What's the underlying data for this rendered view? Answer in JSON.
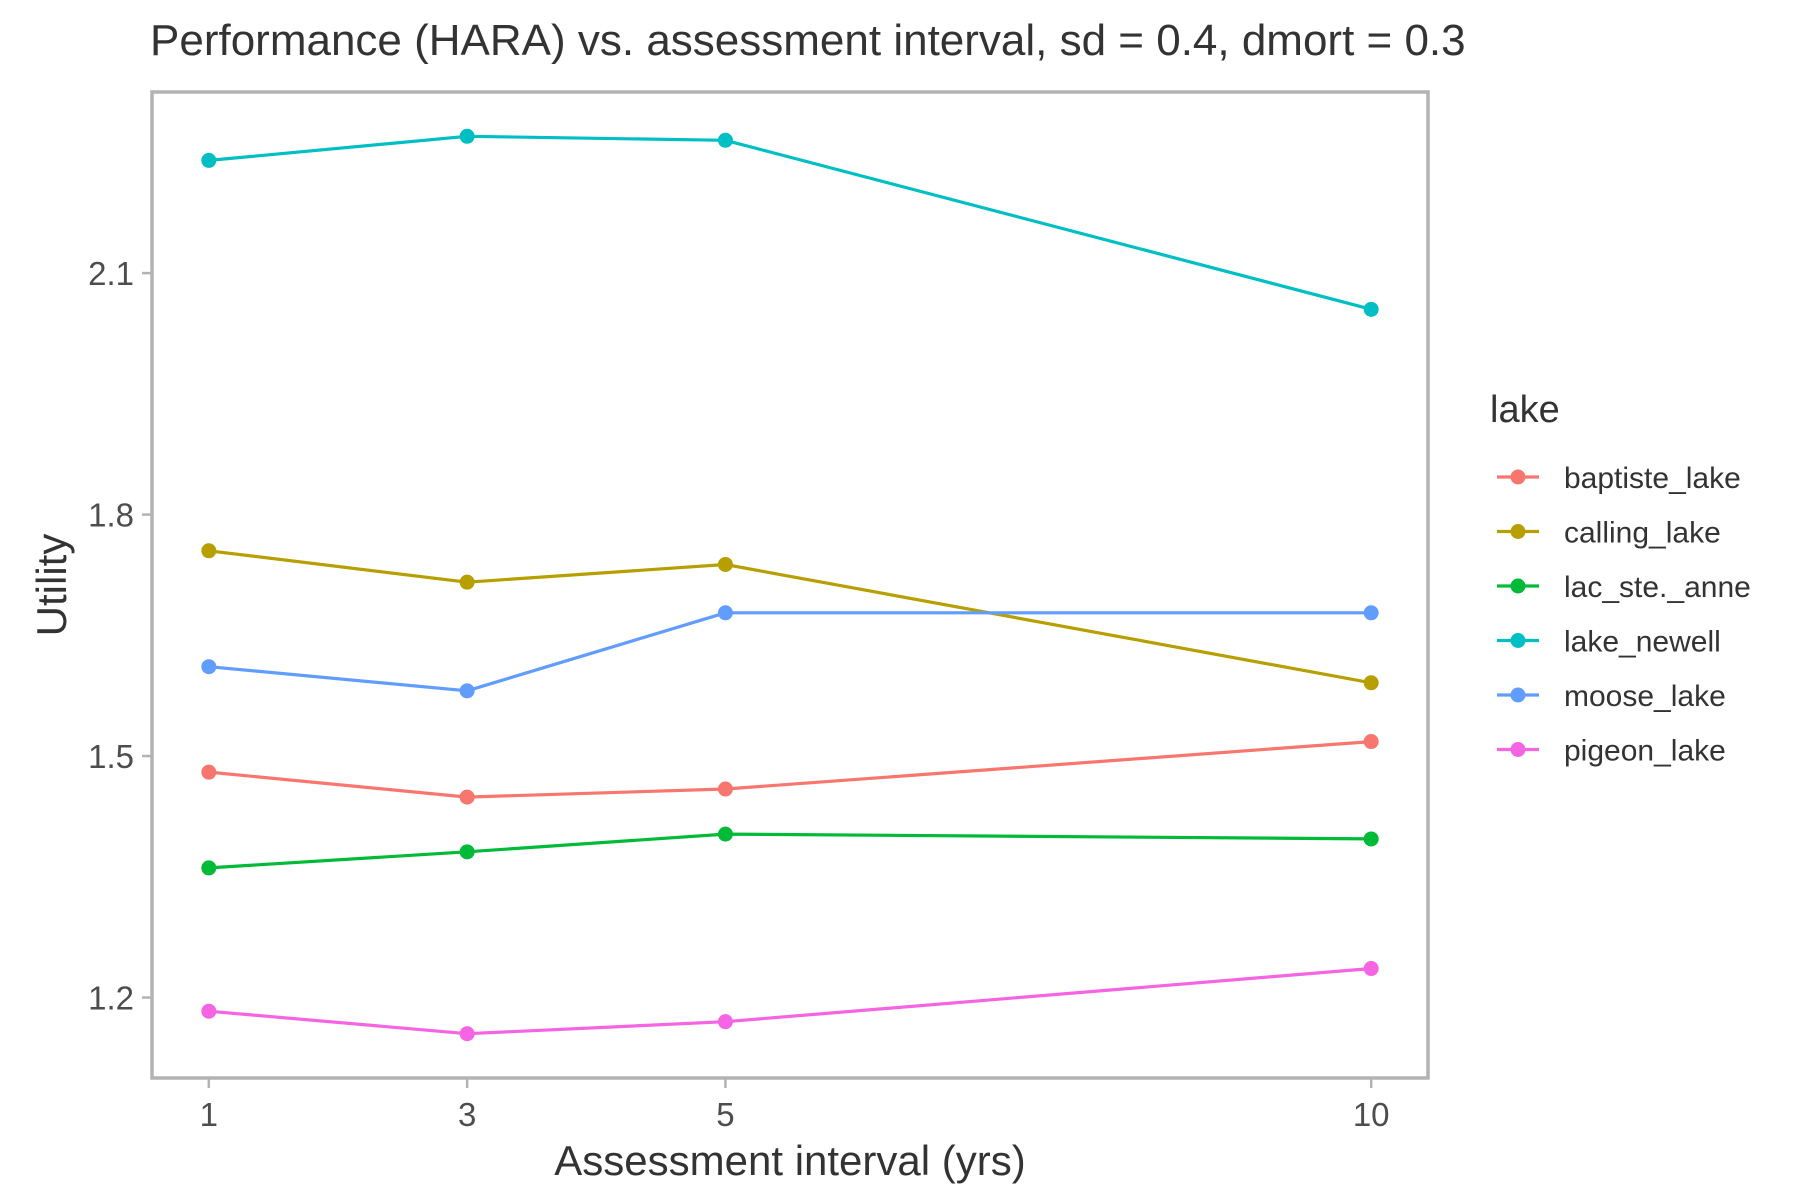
{
  "chart_data": {
    "type": "line",
    "title": "Performance (HARA) vs. assessment interval, sd = 0.4, dmort = 0.3",
    "xlabel": "Assessment interval (yrs)",
    "ylabel": "Utility",
    "x": [
      1,
      3,
      5,
      10
    ],
    "x_tick_labels": [
      "1",
      "3",
      "5",
      "10"
    ],
    "xlim": [
      0.56,
      10.44
    ],
    "ylim": [
      1.1,
      2.325
    ],
    "y_ticks": [
      1.2,
      1.5,
      1.8,
      2.1
    ],
    "y_tick_labels": [
      "1.2",
      "1.5",
      "1.8",
      "2.1"
    ],
    "grid": false,
    "legend": {
      "title": "lake",
      "position": "right"
    },
    "series": [
      {
        "name": "baptiste_lake",
        "color": "#F8766D",
        "values": [
          1.48,
          1.449,
          1.459,
          1.518
        ]
      },
      {
        "name": "calling_lake",
        "color": "#B79F00",
        "values": [
          1.755,
          1.716,
          1.738,
          1.591
        ]
      },
      {
        "name": "lac_ste._anne",
        "color": "#00BA38",
        "values": [
          1.361,
          1.381,
          1.403,
          1.397
        ]
      },
      {
        "name": "lake_newell",
        "color": "#00BFC4",
        "values": [
          2.24,
          2.27,
          2.265,
          2.055
        ]
      },
      {
        "name": "moose_lake",
        "color": "#619CFF",
        "values": [
          1.611,
          1.581,
          1.678,
          1.678
        ]
      },
      {
        "name": "pigeon_lake",
        "color": "#F564E3",
        "values": [
          1.183,
          1.155,
          1.17,
          1.236
        ]
      }
    ]
  }
}
